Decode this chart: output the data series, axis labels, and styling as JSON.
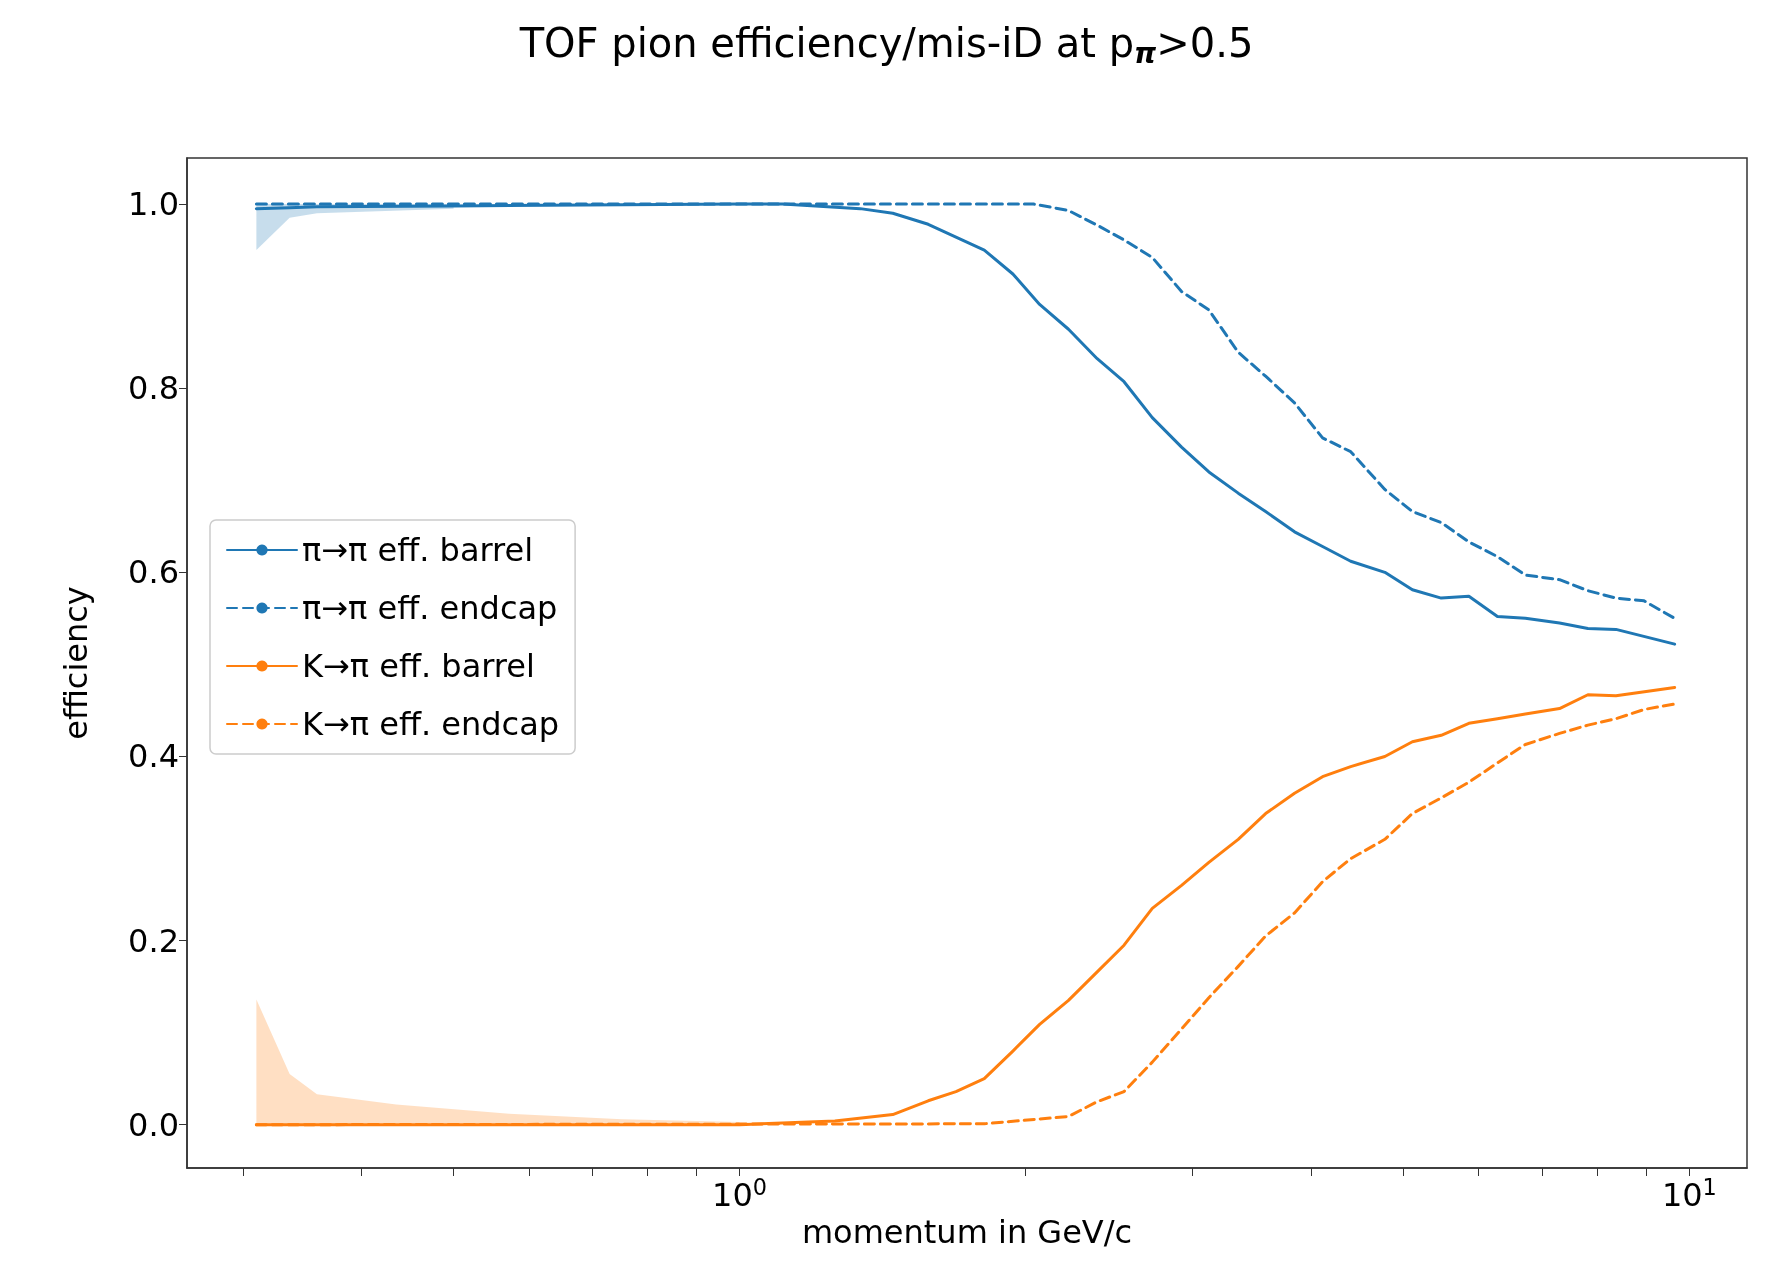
{
  "chart_data": {
    "type": "line",
    "title": "TOF pion efficiency/mis-iD at p$_{π}$>0.5",
    "xlabel": "momentum in GeV/c",
    "ylabel": "efficiency",
    "log": "x",
    "grid": false,
    "legend": "center left",
    "marker": "none",
    "xlim": [
      0.262,
      11.5
    ],
    "ylim": [
      -0.047,
      1.05
    ],
    "xticks": [
      {
        "value": 0.3,
        "label": null
      },
      {
        "value": 0.4,
        "label": null
      },
      {
        "value": 0.5,
        "label": null
      },
      {
        "value": 0.6,
        "label": null
      },
      {
        "value": 0.7,
        "label": null
      },
      {
        "value": 0.8,
        "label": null
      },
      {
        "value": 0.9,
        "label": null
      },
      {
        "value": 1,
        "label": "10$^{0}$"
      },
      {
        "value": 2,
        "label": null
      },
      {
        "value": 3,
        "label": null
      },
      {
        "value": 4,
        "label": null
      },
      {
        "value": 5,
        "label": null
      },
      {
        "value": 6,
        "label": null
      },
      {
        "value": 7,
        "label": null
      },
      {
        "value": 8,
        "label": null
      },
      {
        "value": 9,
        "label": null
      },
      {
        "value": 10,
        "label": "10$^{1}$"
      }
    ],
    "yticks": [
      {
        "value": 0,
        "label": "0.0"
      },
      {
        "value": 0.2,
        "label": "0.2"
      },
      {
        "value": 0.4,
        "label": "0.4"
      },
      {
        "value": 0.6,
        "label": "0.6"
      },
      {
        "value": 0.8,
        "label": "0.8"
      },
      {
        "value": 1,
        "label": "1.0"
      }
    ],
    "series": [
      {
        "name": "π→π eff. barrel",
        "color": "#1f77b4",
        "line_style": "solid",
        "x": [
          0.31,
          0.336,
          0.359,
          0.5,
          1.0,
          1.11,
          1.34,
          1.45,
          1.58,
          1.81,
          1.94,
          2.07,
          2.22,
          2.38,
          2.54,
          2.72,
          2.92,
          3.12,
          3.35,
          3.58,
          3.84,
          4.11,
          4.4,
          4.78,
          5.11,
          5.48,
          5.86,
          6.28,
          6.72,
          7.3,
          7.82,
          8.37,
          9.65
        ],
        "values": [
          0.995,
          0.996,
          0.997,
          0.998,
          1.0,
          1.0,
          0.995,
          0.99,
          0.978,
          0.95,
          0.924,
          0.891,
          0.864,
          0.832,
          0.807,
          0.768,
          0.736,
          0.709,
          0.686,
          0.666,
          0.644,
          0.628,
          0.612,
          0.6,
          0.581,
          0.572,
          0.574,
          0.552,
          0.55,
          0.545,
          0.539,
          0.538,
          0.522
        ],
        "lower": [
          0.95,
          0.985,
          0.99,
          0.995,
          null,
          null,
          null,
          null,
          null,
          null,
          null,
          null,
          null,
          null,
          null,
          null,
          null,
          null,
          null,
          null,
          null,
          null,
          null,
          null,
          null,
          null,
          null,
          null,
          null,
          null,
          null,
          null,
          null
        ],
        "upper": [
          1.0,
          1.0,
          1.0,
          1.0,
          null,
          null,
          null,
          null,
          null,
          null,
          null,
          null,
          null,
          null,
          null,
          null,
          null,
          null,
          null,
          null,
          null,
          null,
          null,
          null,
          null,
          null,
          null,
          null,
          null,
          null,
          null,
          null,
          null
        ]
      },
      {
        "name": "π→π eff. endcap",
        "color": "#1f77b4",
        "line_style": "dashed",
        "x": [
          0.31,
          2.04,
          2.22,
          2.38,
          2.54,
          2.72,
          2.92,
          3.12,
          3.35,
          3.58,
          3.84,
          4.11,
          4.4,
          4.78,
          5.11,
          5.48,
          5.86,
          6.28,
          6.72,
          7.3,
          7.82,
          8.37,
          8.96,
          9.65
        ],
        "values": [
          1.0,
          1.0,
          0.993,
          0.977,
          0.961,
          0.942,
          0.905,
          0.885,
          0.839,
          0.813,
          0.784,
          0.746,
          0.731,
          0.69,
          0.666,
          0.654,
          0.633,
          0.617,
          0.597,
          0.592,
          0.58,
          0.572,
          0.569,
          0.55
        ]
      },
      {
        "name": "K→π eff. barrel",
        "color": "#ff7f0e",
        "line_style": "solid",
        "x": [
          0.31,
          0.336,
          0.359,
          0.435,
          0.572,
          0.752,
          1.0,
          1.26,
          1.45,
          1.58,
          1.69,
          1.81,
          1.94,
          2.07,
          2.22,
          2.38,
          2.54,
          2.72,
          2.92,
          3.12,
          3.35,
          3.58,
          3.84,
          4.11,
          4.4,
          4.78,
          5.11,
          5.48,
          5.86,
          6.28,
          6.72,
          7.3,
          7.82,
          8.37,
          9.65
        ],
        "values": [
          0.0,
          0.0,
          0.0,
          0.0,
          0.0,
          0.0,
          0.0,
          0.004,
          0.011,
          0.026,
          0.036,
          0.05,
          0.08,
          0.109,
          0.135,
          0.166,
          0.195,
          0.235,
          0.26,
          0.285,
          0.31,
          0.338,
          0.36,
          0.378,
          0.389,
          0.4,
          0.416,
          0.423,
          0.436,
          0.441,
          0.446,
          0.452,
          0.467,
          0.466,
          0.475
        ],
        "lower": [
          0.0,
          0.0,
          0.0,
          0.0,
          0.0,
          0.0,
          0.0,
          null,
          null,
          null,
          null,
          null,
          null,
          null,
          null,
          null,
          null,
          null,
          null,
          null,
          null,
          null,
          null,
          null,
          null,
          null,
          null,
          null,
          null,
          null,
          null,
          null,
          null,
          null,
          null
        ],
        "upper": [
          0.136,
          0.055,
          0.033,
          0.022,
          0.012,
          0.006,
          0.003,
          null,
          null,
          null,
          null,
          null,
          null,
          null,
          null,
          null,
          null,
          null,
          null,
          null,
          null,
          null,
          null,
          null,
          null,
          null,
          null,
          null,
          null,
          null,
          null,
          null,
          null,
          null,
          null
        ]
      },
      {
        "name": "K→π eff. endcap",
        "color": "#ff7f0e",
        "line_style": "dashed",
        "x": [
          0.31,
          1.81,
          2.22,
          2.38,
          2.54,
          2.72,
          2.92,
          3.12,
          3.35,
          3.58,
          3.84,
          4.11,
          4.4,
          4.78,
          5.11,
          5.48,
          5.86,
          6.28,
          6.72,
          7.3,
          7.82,
          8.37,
          8.96,
          9.65
        ],
        "values": [
          0.0,
          0.001,
          0.009,
          0.025,
          0.036,
          0.068,
          0.104,
          0.138,
          0.172,
          0.205,
          0.23,
          0.264,
          0.289,
          0.31,
          0.338,
          0.355,
          0.372,
          0.393,
          0.413,
          0.425,
          0.434,
          0.441,
          0.451,
          0.457
        ]
      }
    ]
  }
}
